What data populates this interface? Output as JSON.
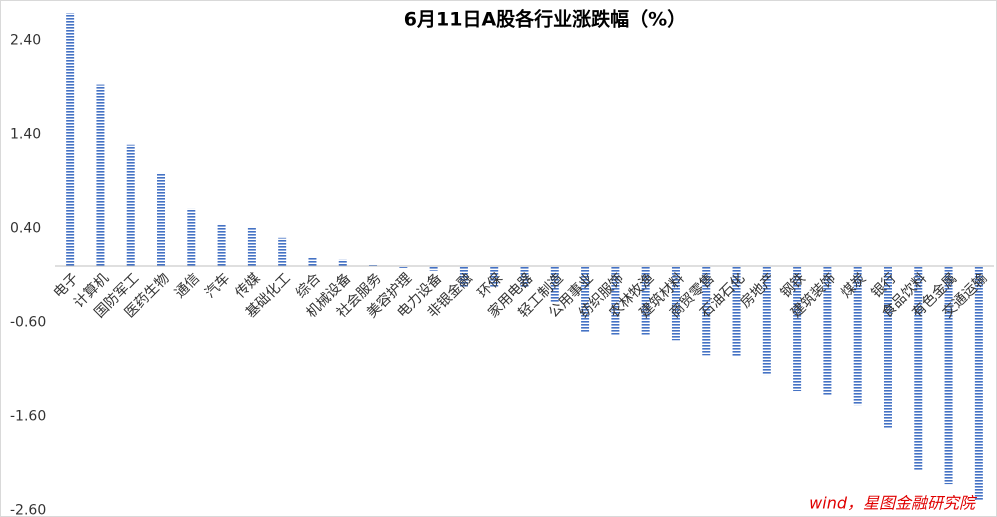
{
  "chart_data": {
    "type": "bar",
    "title": "6月11日A股各行业涨跌幅（%）",
    "categories": [
      "电子",
      "计算机",
      "国防军工",
      "医药生物",
      "通信",
      "汽车",
      "传媒",
      "基础化工",
      "综合",
      "机械设备",
      "社会服务",
      "美容护理",
      "电力设备",
      "非银金融",
      "环保",
      "家用电器",
      "轻工制造",
      "公用事业",
      "纺织服饰",
      "农林牧渔",
      "建筑材料",
      "商贸零售",
      "石油石化",
      "房地产",
      "钢铁",
      "建筑装饰",
      "煤炭",
      "银行",
      "食品饮料",
      "有色金属",
      "交通运输"
    ],
    "values": [
      2.69,
      1.93,
      1.29,
      0.99,
      0.61,
      0.44,
      0.41,
      0.3,
      0.09,
      0.07,
      0.01,
      -0.02,
      -0.05,
      -0.22,
      -0.22,
      -0.23,
      -0.39,
      -0.71,
      -0.73,
      -0.73,
      -0.79,
      -0.95,
      -0.96,
      -1.16,
      -1.33,
      -1.37,
      -1.48,
      -1.72,
      -2.18,
      -2.32,
      -2.49
    ],
    "color": "#4472c4",
    "ylim": [
      -2.6,
      2.75
    ],
    "yticks": [
      {
        "value": -2.6,
        "label": "-2.60"
      },
      {
        "value": -1.6,
        "label": "-1.60"
      },
      {
        "value": -0.6,
        "label": "-0.60"
      },
      {
        "value": 0.4,
        "label": "0.40"
      },
      {
        "value": 1.4,
        "label": "1.40"
      },
      {
        "value": 2.4,
        "label": "2.40"
      }
    ],
    "annotation": "wind，星图金融研究院"
  }
}
